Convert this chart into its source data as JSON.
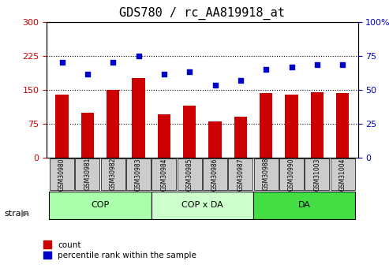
{
  "title": "GDS780 / rc_AA819918_at",
  "categories": [
    "GSM30980",
    "GSM30981",
    "GSM30982",
    "GSM30983",
    "GSM30984",
    "GSM30985",
    "GSM30986",
    "GSM30987",
    "GSM30988",
    "GSM30990",
    "GSM31003",
    "GSM31004"
  ],
  "bar_values": [
    140,
    100,
    150,
    175,
    95,
    115,
    80,
    90,
    143,
    140,
    145,
    142
  ],
  "scatter_values": [
    210,
    185,
    210,
    225,
    185,
    190,
    160,
    170,
    195,
    200,
    205,
    205
  ],
  "ylim_left": [
    0,
    300
  ],
  "ylim_right": [
    0,
    100
  ],
  "yticks_left": [
    0,
    75,
    150,
    225,
    300
  ],
  "yticks_right": [
    0,
    25,
    50,
    75,
    100
  ],
  "bar_color": "#cc0000",
  "scatter_color": "#0000cc",
  "groups": [
    {
      "label": "COP",
      "start": 0,
      "end": 4,
      "color": "#aaffaa"
    },
    {
      "label": "COP x DA",
      "start": 4,
      "end": 8,
      "color": "#ccffcc"
    },
    {
      "label": "DA",
      "start": 8,
      "end": 12,
      "color": "#44dd44"
    }
  ],
  "legend_count_label": "count",
  "legend_pct_label": "percentile rank within the sample",
  "xlabel_strain": "strain",
  "tick_area_bg": "#cccccc",
  "dotted_lines": [
    75,
    150,
    225
  ]
}
